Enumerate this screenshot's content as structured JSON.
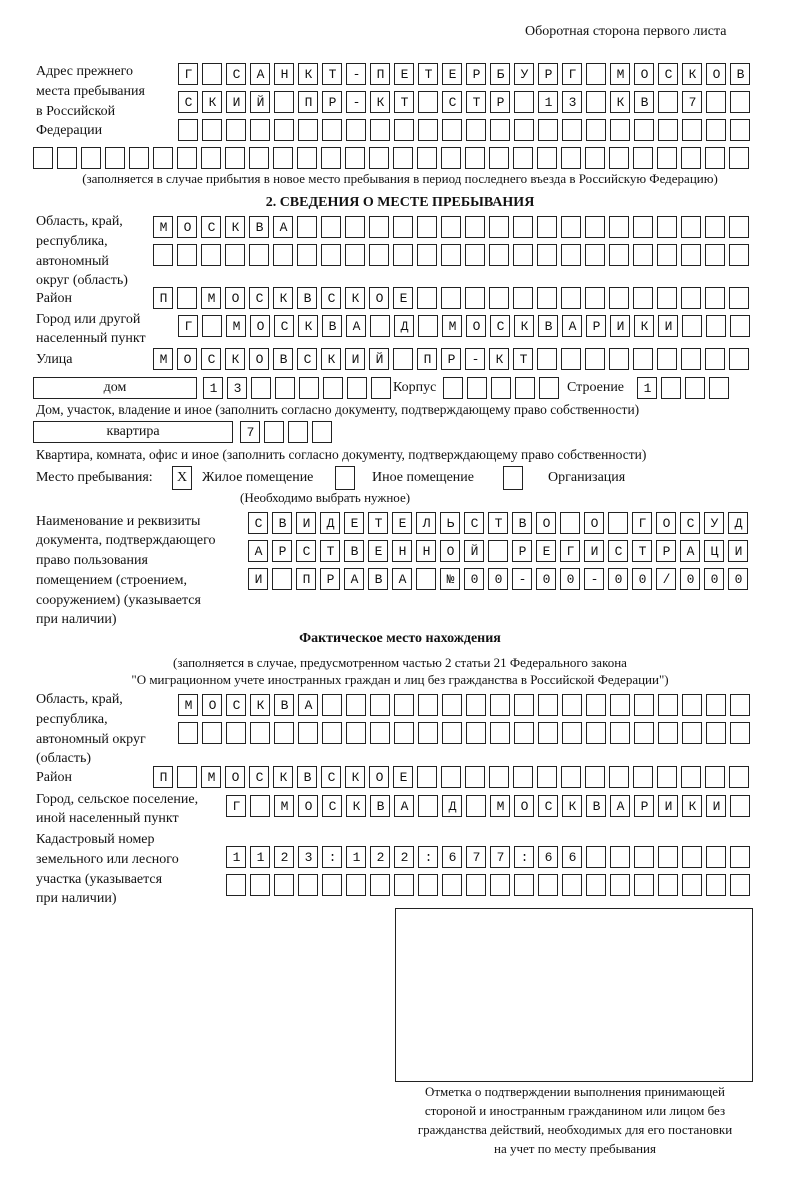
{
  "header": "Оборотная сторона первого листа",
  "prev_address": {
    "label": [
      "Адрес прежнего",
      "места пребывания",
      "в Российской",
      "Федерации"
    ],
    "rows": [
      "Г САНКТ-ПЕТЕРБУРГ МОСКОВ",
      "СКИЙ ПР-КТ СТР 13 КВ 7",
      "",
      ""
    ],
    "note": "(заполняется в случае прибытия в новое место пребывания в период последнего въезда в Российскую Федерацию)"
  },
  "section2": {
    "title": "2. СВЕДЕНИЯ О МЕСТЕ ПРЕБЫВАНИЯ",
    "region_label": [
      "Область, край,",
      "республика,",
      "автономный",
      "округ (область)"
    ],
    "region_rows": [
      "МОСКВА",
      ""
    ],
    "district_label": "Район",
    "district": "П МОСКВСКОЕ",
    "city_label": [
      "Город или другой",
      "населенный пункт"
    ],
    "city": "Г МОСКВА Д МОСКВАРИКИ",
    "street_label": "Улица",
    "street": "МОСКОВСКИЙ ПР-КТ",
    "house_type": "дом",
    "house": "13",
    "korpus_label": "Корпус",
    "korpus": "",
    "building_label": "Строение",
    "building": "1",
    "house_note": "Дом, участок, владение и иное (заполнить согласно документу, подтверждающему право собственности)",
    "flat_type": "квартира",
    "flat": "7",
    "flat_note": "Квартира, комната, офис и иное (заполнить согласно документу, подтверждающему право собственности)",
    "stay_label": "Место пребывания:",
    "options": [
      {
        "label": "Жилое помещение",
        "mark": "X"
      },
      {
        "label": "Иное помещение",
        "mark": ""
      },
      {
        "label": "Организация",
        "mark": ""
      }
    ],
    "choose_note": "(Необходимо выбрать нужное)",
    "doc_label": [
      "Наименование и реквизиты",
      "документа, подтверждающего",
      "право пользования",
      "помещением (строением,",
      "сооружением) (указывается",
      "при наличии)"
    ],
    "doc_rows": [
      "СВИДЕТЕЛЬСТВО О ГОСУД",
      "АРСТВЕННОЙ РЕГИСТРАЦИ",
      "И ПРАВА №00-00-00/000"
    ]
  },
  "actual": {
    "title": "Фактическое место нахождения",
    "note": [
      "(заполняется в случае, предусмотренном частью 2 статьи 21 Федерального закона",
      "\"О миграционном учете иностранных граждан и лиц без гражданства в Российской Федерации\")"
    ],
    "region_label": [
      "Область, край,",
      "республика,",
      "автономный округ",
      "(область)"
    ],
    "region_rows": [
      "МОСКВА",
      ""
    ],
    "district_label": "Район",
    "district": "П МОСКВСКОЕ",
    "city_label": [
      "Город, сельское поселение,",
      "иной населенный пункт"
    ],
    "city": "Г МОСКВА Д МОСКВАРИКИ",
    "cadastre_label": [
      "Кадастровый номер",
      "земельного или лесного",
      "участка (указывается",
      "при наличии)"
    ],
    "cadastre_rows": [
      "1123:122:677:66",
      ""
    ]
  },
  "stamp_caption": [
    "Отметка о подтверждении выполнения принимающей",
    "стороной и иностранным гражданином или лицом без",
    "гражданства действий, необходимых для его постановки",
    "на учет по месту пребывания"
  ]
}
